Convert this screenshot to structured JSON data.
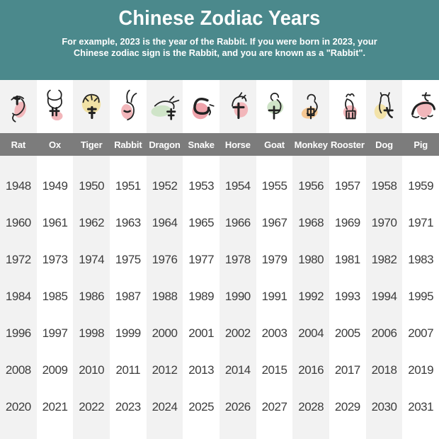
{
  "header": {
    "title": "Chinese Zodiac Years",
    "subtitle_line1": "For example, 2023 is the year of the Rabbit. If you were born in 2023, your",
    "subtitle_line2": "Chinese zodiac sign is the Rabbit, and you are known as a \"Rabbit\"."
  },
  "colors": {
    "header_bg": "#4b898c",
    "label_bar_bg": "#7c7c7c",
    "label_text": "#ffffff",
    "column_alt_bg": "#f2f2f2",
    "column_bg": "#ffffff",
    "year_text": "#3d3d3d",
    "ink": "#222222",
    "blob_pink": "#f2b6ba",
    "blob_yellow": "#f1e2a5",
    "blob_green": "#cfe4c8",
    "blob_orange": "#f5c793"
  },
  "zodiac": {
    "animals": [
      {
        "label": "Rat",
        "icon": "rat-icon",
        "blob_color": "#f2b6ba"
      },
      {
        "label": "Ox",
        "icon": "ox-icon",
        "blob_color": "#f2b6ba"
      },
      {
        "label": "Tiger",
        "icon": "tiger-icon",
        "blob_color": "#f1e2a5"
      },
      {
        "label": "Rabbit",
        "icon": "rabbit-icon",
        "blob_color": "#f2b6ba"
      },
      {
        "label": "Dragon",
        "icon": "dragon-icon",
        "blob_color": "#cfe4c8"
      },
      {
        "label": "Snake",
        "icon": "snake-icon",
        "blob_color": "#efa3ab"
      },
      {
        "label": "Horse",
        "icon": "horse-icon",
        "blob_color": "#f2b6ba"
      },
      {
        "label": "Goat",
        "icon": "goat-icon",
        "blob_color": "#cfe4c8"
      },
      {
        "label": "Monkey",
        "icon": "monkey-icon",
        "blob_color": "#f5c793"
      },
      {
        "label": "Rooster",
        "icon": "rooster-icon",
        "blob_color": "#f2b6ba"
      },
      {
        "label": "Dog",
        "icon": "dog-icon",
        "blob_color": "#f3e3a9"
      },
      {
        "label": "Pig",
        "icon": "pig-icon",
        "blob_color": "#f2b6ba"
      }
    ]
  },
  "chart_data": {
    "type": "table",
    "title": "Chinese Zodiac Years",
    "columns": [
      "Rat",
      "Ox",
      "Tiger",
      "Rabbit",
      "Dragon",
      "Snake",
      "Horse",
      "Goat",
      "Monkey",
      "Rooster",
      "Dog",
      "Pig"
    ],
    "rows": [
      [
        1948,
        1949,
        1950,
        1951,
        1952,
        1953,
        1954,
        1955,
        1956,
        1957,
        1958,
        1959
      ],
      [
        1960,
        1961,
        1962,
        1963,
        1964,
        1965,
        1966,
        1967,
        1968,
        1969,
        1970,
        1971
      ],
      [
        1972,
        1973,
        1974,
        1975,
        1976,
        1977,
        1978,
        1979,
        1980,
        1981,
        1982,
        1983
      ],
      [
        1984,
        1985,
        1986,
        1987,
        1988,
        1989,
        1990,
        1991,
        1992,
        1993,
        1994,
        1995
      ],
      [
        1996,
        1997,
        1998,
        1999,
        2000,
        2001,
        2002,
        2003,
        2004,
        2005,
        2006,
        2007
      ],
      [
        2008,
        2009,
        2010,
        2011,
        2012,
        2013,
        2014,
        2015,
        2016,
        2017,
        2018,
        2019
      ],
      [
        2020,
        2021,
        2022,
        2023,
        2024,
        2025,
        2026,
        2027,
        2028,
        2029,
        2030,
        2031
      ]
    ]
  }
}
